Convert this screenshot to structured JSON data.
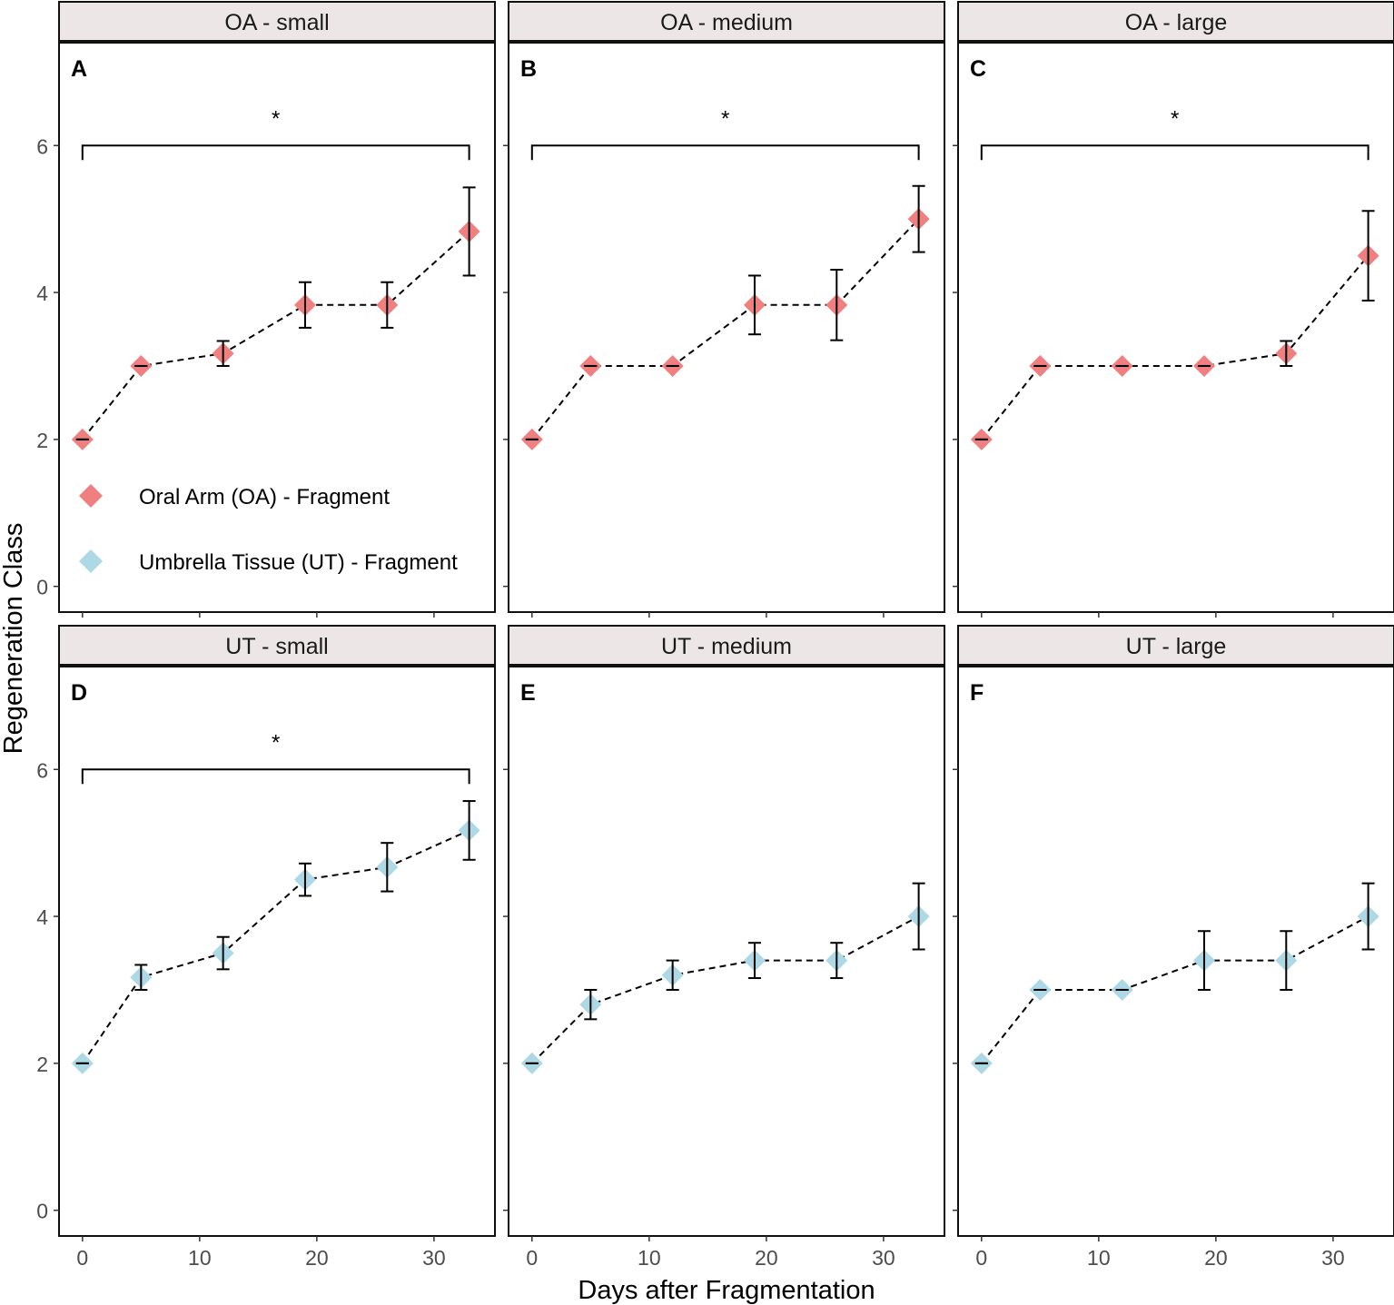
{
  "chart_data": {
    "type": "scatter",
    "figure": {
      "ylabel": "Regeneration Class",
      "xlabel": "Days after Fragmentation",
      "xlim": [
        -2,
        35.2
      ],
      "ylim": [
        -0.35,
        7.4
      ],
      "xticks": [
        0,
        10,
        20,
        30
      ],
      "yticks": [
        0,
        2,
        4,
        6
      ],
      "line_style": "dashed",
      "marker": "diamond",
      "colors": {
        "OA": "#F08080",
        "UT": "#ADD8E6"
      }
    },
    "legend": {
      "placement": "inside panel A, lower-left",
      "entries": [
        {
          "label": "Oral Arm (OA) - Fragment",
          "color": "#F08080"
        },
        {
          "label": "Umbrella Tissue (UT) - Fragment",
          "color": "#ADD8E6"
        }
      ]
    },
    "panels": [
      {
        "id": "A",
        "strip": "OA - small",
        "group": "OA",
        "x": [
          0,
          5,
          12,
          19,
          26,
          33
        ],
        "y": [
          2.0,
          3.0,
          3.17,
          3.83,
          3.83,
          4.83
        ],
        "err": [
          0,
          0,
          0.17,
          0.31,
          0.31,
          0.6
        ],
        "significance": {
          "from": 0,
          "to": 33,
          "y": 6.0,
          "label": "*"
        }
      },
      {
        "id": "B",
        "strip": "OA - medium",
        "group": "OA",
        "x": [
          0,
          5,
          12,
          19,
          26,
          33
        ],
        "y": [
          2.0,
          3.0,
          3.0,
          3.83,
          3.83,
          5.0
        ],
        "err": [
          0,
          0,
          0,
          0.4,
          0.48,
          0.45
        ],
        "significance": {
          "from": 0,
          "to": 33,
          "y": 6.0,
          "label": "*"
        }
      },
      {
        "id": "C",
        "strip": "OA - large",
        "group": "OA",
        "x": [
          0,
          5,
          12,
          19,
          26,
          33
        ],
        "y": [
          2.0,
          3.0,
          3.0,
          3.0,
          3.17,
          4.5
        ],
        "err": [
          0,
          0,
          0,
          0,
          0.17,
          0.61
        ],
        "significance": {
          "from": 0,
          "to": 33,
          "y": 6.0,
          "label": "*"
        }
      },
      {
        "id": "D",
        "strip": "UT - small",
        "group": "UT",
        "x": [
          0,
          5,
          12,
          19,
          26,
          33
        ],
        "y": [
          2.0,
          3.17,
          3.5,
          4.5,
          4.67,
          5.17
        ],
        "err": [
          0,
          0.17,
          0.22,
          0.22,
          0.33,
          0.4
        ],
        "significance": {
          "from": 0,
          "to": 33,
          "y": 6.0,
          "label": "*"
        }
      },
      {
        "id": "E",
        "strip": "UT - medium",
        "group": "UT",
        "x": [
          0,
          5,
          12,
          19,
          26,
          33
        ],
        "y": [
          2.0,
          2.8,
          3.2,
          3.4,
          3.4,
          4.0
        ],
        "err": [
          0,
          0.2,
          0.2,
          0.24,
          0.24,
          0.45
        ],
        "significance": null
      },
      {
        "id": "F",
        "strip": "UT - large",
        "group": "UT",
        "x": [
          0,
          5,
          12,
          19,
          26,
          33
        ],
        "y": [
          2.0,
          3.0,
          3.0,
          3.4,
          3.4,
          4.0
        ],
        "err": [
          0,
          0,
          0,
          0.4,
          0.4,
          0.45
        ],
        "significance": null
      }
    ]
  }
}
